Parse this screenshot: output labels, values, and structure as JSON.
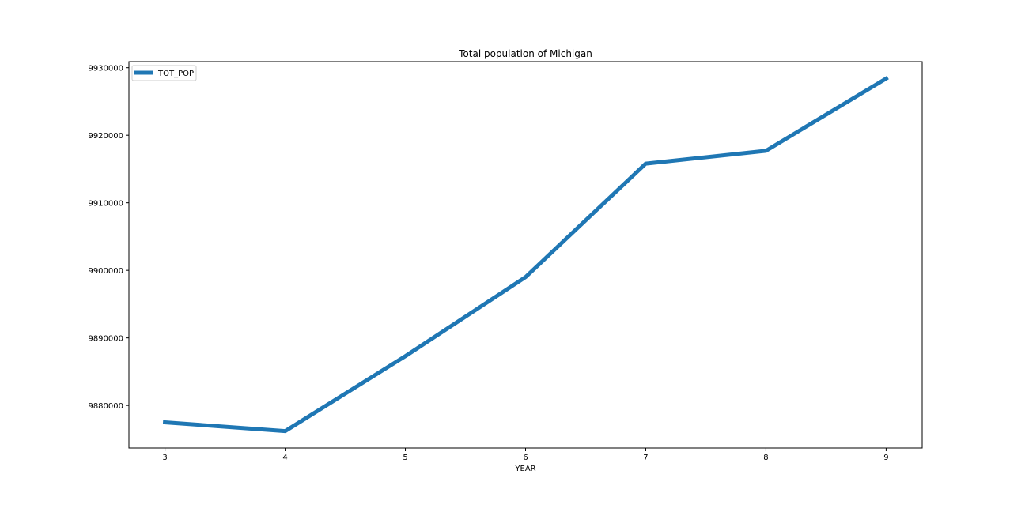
{
  "chart_data": {
    "type": "line",
    "title": "Total population of Michigan",
    "xlabel": "YEAR",
    "ylabel": "",
    "x": [
      3,
      4,
      5,
      6,
      7,
      8,
      9
    ],
    "series": [
      {
        "name": "TOT_POP",
        "values": [
          9877500,
          9876200,
          9887300,
          9899000,
          9915800,
          9917700,
          9928400
        ],
        "color": "#1f77b4"
      }
    ],
    "xticks": [
      "3",
      "4",
      "5",
      "6",
      "7",
      "8",
      "9"
    ],
    "yticks": [
      9880000,
      9890000,
      9900000,
      9910000,
      9920000,
      9930000
    ],
    "xlim": [
      2.7,
      9.3
    ],
    "ylim": [
      9873700,
      9930900
    ],
    "grid": false,
    "legend_position": "top-left"
  }
}
